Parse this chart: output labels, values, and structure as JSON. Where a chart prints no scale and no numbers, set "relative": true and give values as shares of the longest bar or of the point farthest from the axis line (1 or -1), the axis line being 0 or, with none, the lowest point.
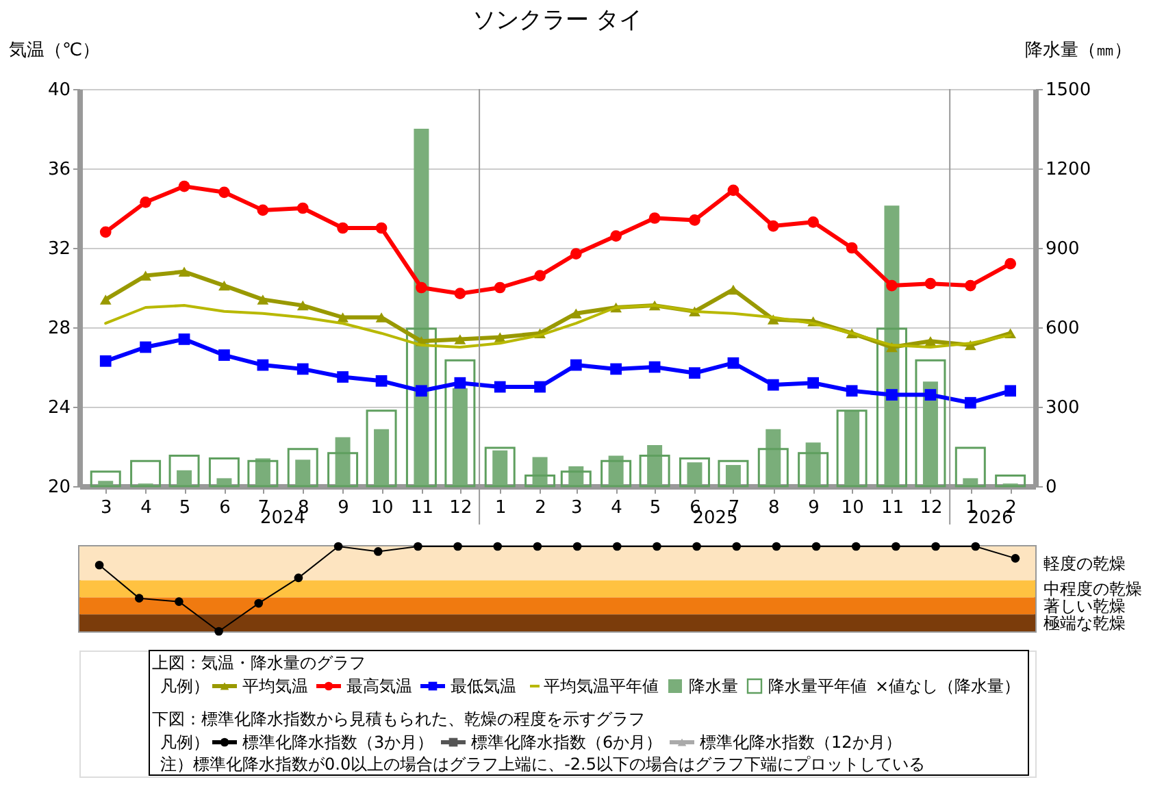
{
  "chart_data": [
    {
      "type": "line",
      "title": "ソンクラー タイ",
      "ylabel": "気温（℃）",
      "y2label": "降水量（㎜）",
      "x": [
        "2024-03",
        "2024-04",
        "2024-05",
        "2024-06",
        "2024-07",
        "2024-08",
        "2024-09",
        "2024-10",
        "2024-11",
        "2024-12",
        "2025-01",
        "2025-02",
        "2025-03",
        "2025-04",
        "2025-05",
        "2025-06",
        "2025-07",
        "2025-08",
        "2025-09",
        "2025-10",
        "2025-11",
        "2025-12",
        "2026-01",
        "2026-02"
      ],
      "xlim": [
        "2024-02-15",
        "2026-02-15"
      ],
      "xticks": [
        {
          "value": "2024-03",
          "label": "3"
        },
        {
          "value": "2024-04",
          "label": "4"
        },
        {
          "value": "2024-05",
          "label": "5"
        },
        {
          "value": "2024-06",
          "label": "6"
        },
        {
          "value": "2024-07",
          "label": "7"
        },
        {
          "value": "2024-08",
          "label": "8"
        },
        {
          "value": "2024-09",
          "label": "9"
        },
        {
          "value": "2024-10",
          "label": "10"
        },
        {
          "value": "2024-11",
          "label": "11"
        },
        {
          "value": "2024-12",
          "label": "12"
        },
        {
          "value": "2025-01",
          "label": "1"
        },
        {
          "value": "2025-02",
          "label": "2"
        },
        {
          "value": "2025-03",
          "label": "3"
        },
        {
          "value": "2025-04",
          "label": "4"
        },
        {
          "value": "2025-05",
          "label": "5"
        },
        {
          "value": "2025-06",
          "label": "6"
        },
        {
          "value": "2025-07",
          "label": "7"
        },
        {
          "value": "2025-08",
          "label": "8"
        },
        {
          "value": "2025-09",
          "label": "9"
        },
        {
          "value": "2025-10",
          "label": "10"
        },
        {
          "value": "2025-11",
          "label": "11"
        },
        {
          "value": "2025-12",
          "label": "12"
        },
        {
          "value": "2026-01",
          "label": "1"
        },
        {
          "value": "2026-02",
          "label": "2"
        }
      ],
      "ylim": [
        20,
        40
      ],
      "yticks": [
        20,
        24,
        28,
        32,
        36,
        40
      ],
      "y2lim": [
        0,
        1500
      ],
      "y2ticks": [
        0,
        300,
        600,
        900,
        1200,
        1500
      ],
      "grid": "y",
      "legend": "bottom",
      "ref_lines": [
        {
          "axis": "x",
          "value": "2024-12-16",
          "color": "#999999"
        },
        {
          "axis": "x",
          "value": "2025-12-16",
          "color": "#999999"
        }
      ],
      "annotations": [
        "上図：気温・降水量のグラフ",
        "凡例）",
        "×値なし（降水量）",
        "2024",
        "2025",
        "2026"
      ],
      "series": [
        {
          "name": "平均気温",
          "type": "line",
          "color": "#999900",
          "marker": "triangle",
          "values": [
            29.4,
            30.6,
            30.8,
            30.1,
            29.4,
            29.1,
            28.5,
            28.5,
            27.3,
            27.4,
            27.5,
            27.7,
            28.7,
            29.0,
            29.1,
            28.8,
            29.9,
            28.4,
            28.3,
            27.7,
            27.0,
            27.3,
            27.1,
            27.7
          ]
        },
        {
          "name": "最高気温",
          "type": "line",
          "color": "#ff0000",
          "marker": "circle",
          "values": [
            32.8,
            34.3,
            35.1,
            34.8,
            33.9,
            34.0,
            33.0,
            33.0,
            30.0,
            29.7,
            30.0,
            30.6,
            31.7,
            32.6,
            33.5,
            33.4,
            34.9,
            33.1,
            33.3,
            32.0,
            30.1,
            30.2,
            30.1,
            31.2
          ]
        },
        {
          "name": "最低気温",
          "type": "line",
          "color": "#0000ff",
          "marker": "square",
          "values": [
            26.3,
            27.0,
            27.4,
            26.6,
            26.1,
            25.9,
            25.5,
            25.3,
            24.8,
            25.2,
            25.0,
            25.0,
            26.1,
            25.9,
            26.0,
            25.7,
            26.2,
            25.1,
            25.2,
            24.8,
            24.6,
            24.6,
            24.2,
            24.8
          ]
        },
        {
          "name": "平均気温平年値",
          "type": "line",
          "color": "#b8b800",
          "marker": "none",
          "values": [
            28.2,
            29.0,
            29.1,
            28.8,
            28.7,
            28.5,
            28.2,
            27.7,
            27.1,
            27.0,
            27.2,
            27.6,
            28.2,
            29.0,
            29.1,
            28.8,
            28.7,
            28.5,
            28.2,
            27.7,
            27.1,
            27.0,
            27.2,
            27.6
          ]
        },
        {
          "name": "降水量",
          "type": "bar",
          "axis": "y2",
          "color": "#7aae7a",
          "values": [
            20,
            10,
            60,
            30,
            105,
            100,
            185,
            215,
            1350,
            370,
            135,
            110,
            75,
            115,
            155,
            90,
            80,
            215,
            165,
            285,
            1060,
            395,
            30,
            10
          ]
        },
        {
          "name": "降水量平年値",
          "type": "bar",
          "axis": "y2",
          "color": "#5f9f5f",
          "values": [
            55,
            95,
            115,
            105,
            95,
            140,
            125,
            285,
            595,
            475,
            145,
            40,
            55,
            95,
            115,
            105,
            95,
            140,
            125,
            285,
            595,
            475,
            145,
            40
          ]
        }
      ]
    },
    {
      "type": "line",
      "relative": true,
      "tick_labels": false,
      "legend": "bottom",
      "categories": [
        null,
        null,
        null,
        null,
        null,
        null,
        null,
        null,
        null,
        null,
        null,
        null,
        null,
        null,
        null,
        null,
        null,
        null,
        null,
        null,
        null,
        null,
        null,
        null
      ],
      "bands": [
        {
          "axis": "y",
          "from": 0,
          "to": -0.4,
          "label": "軽度の乾燥",
          "color": "#fde4c0"
        },
        {
          "axis": "y",
          "from": -0.4,
          "to": -0.6,
          "label": "中程度の乾燥",
          "color": "#ffc241"
        },
        {
          "axis": "y",
          "from": -0.6,
          "to": -0.8,
          "label": "著しい乾燥",
          "color": "#f07a10"
        },
        {
          "axis": "y",
          "from": -0.8,
          "to": -1,
          "label": "極端な乾燥",
          "color": "#7b3c0b"
        }
      ],
      "annotations": [
        "下図：標準化降水指数から見積もられた、乾燥の程度を示すグラフ",
        "凡例）",
        "注）標準化降水指数が0.0以上の場合はグラフ上端に、-2.5以下の場合はグラフ下端にプロットしている"
      ],
      "series": [
        {
          "name": "標準化降水指数（3か月）",
          "color": "#000000",
          "marker": "circle",
          "values": [
            -0.22,
            -0.61,
            -0.65,
            -1,
            -0.67,
            -0.37,
            0,
            -0.06,
            0,
            0,
            0,
            0,
            0,
            0,
            0,
            0,
            0,
            0,
            0,
            0,
            0,
            0,
            0,
            -0.14
          ]
        },
        {
          "name": "標準化降水指数（6か月）",
          "color": "#555555",
          "marker": "square",
          "values": [
            null,
            null,
            null,
            null,
            null,
            null,
            null,
            null,
            null,
            null,
            null,
            null,
            null,
            null,
            null,
            null,
            null,
            null,
            null,
            null,
            null,
            null,
            null,
            null
          ]
        },
        {
          "name": "標準化降水指数（12か月）",
          "color": "#aaaaaa",
          "marker": "triangle",
          "values": [
            null,
            null,
            null,
            null,
            null,
            null,
            null,
            null,
            null,
            null,
            null,
            null,
            null,
            null,
            null,
            null,
            null,
            null,
            null,
            null,
            null,
            null,
            null,
            null
          ]
        }
      ]
    }
  ]
}
